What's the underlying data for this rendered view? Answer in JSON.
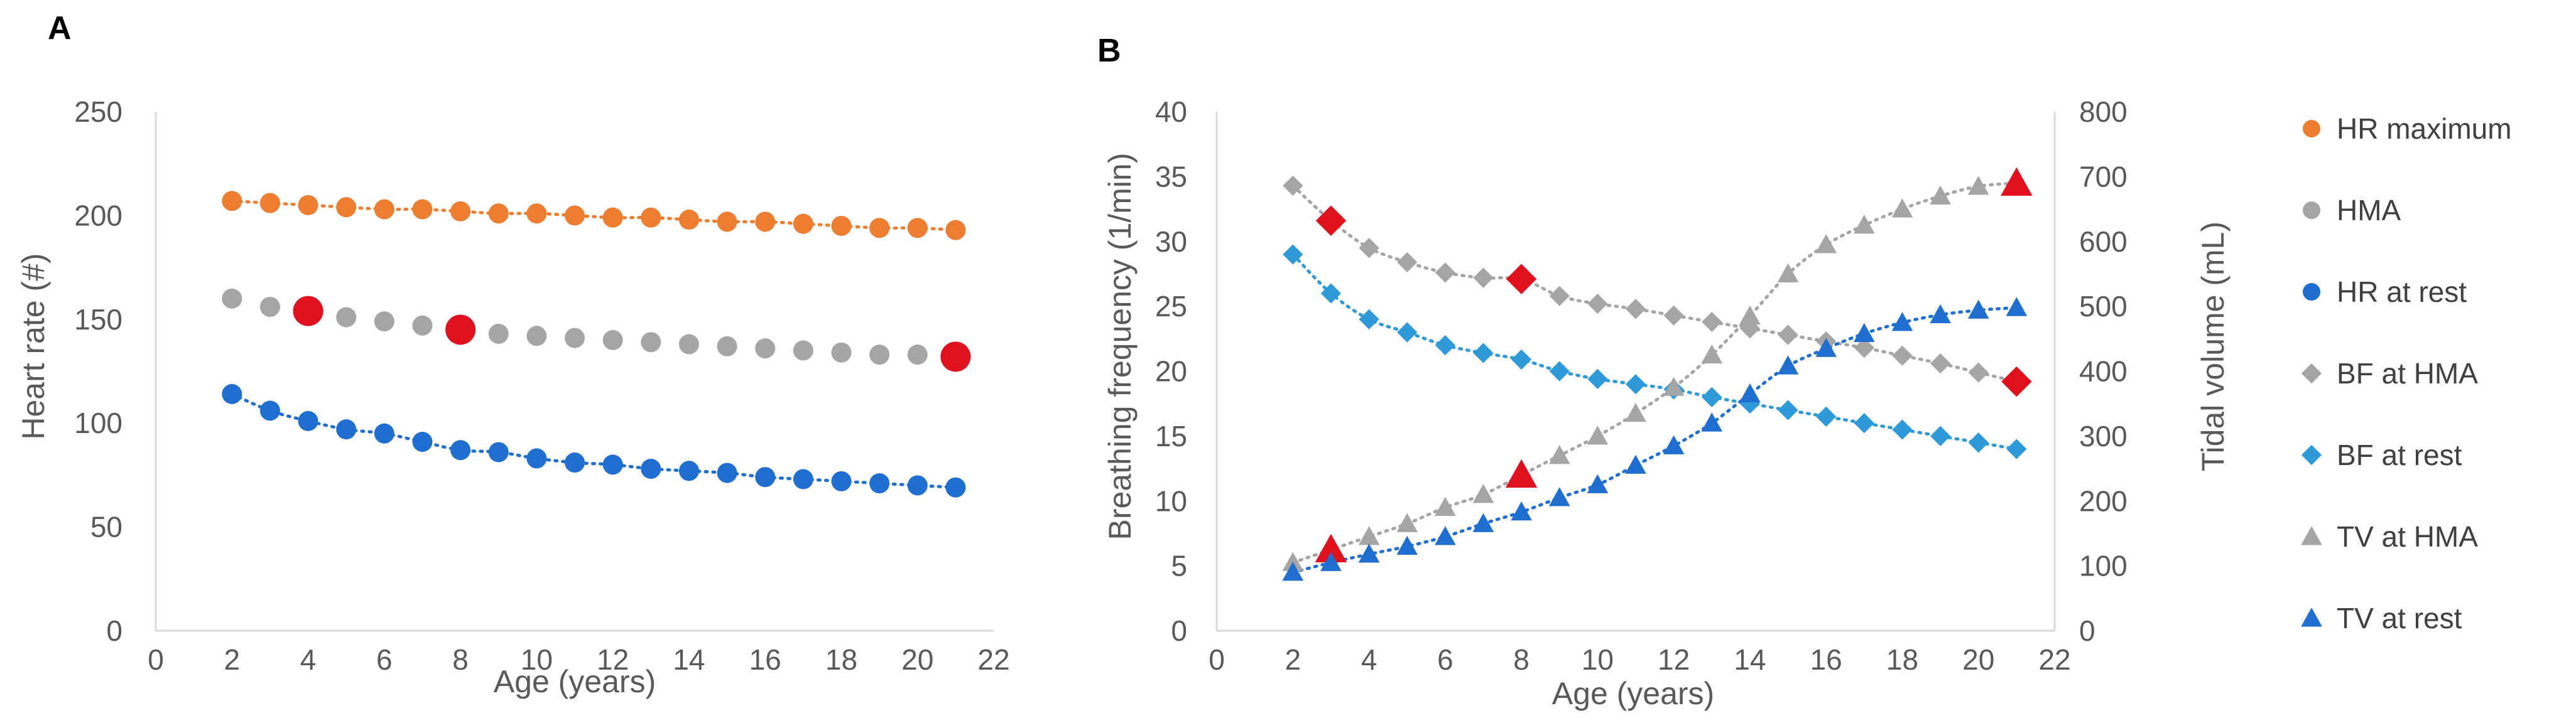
{
  "colors": {
    "orange": "#ED7D31",
    "gray": "#A5A5A5",
    "blue": "#1F6FD1",
    "light_blue": "#2E9BD8",
    "red": "#E0101E",
    "axis": "#D9D9D9",
    "text": "#595959"
  },
  "chart_data": [
    {
      "type": "scatter",
      "panel": "A",
      "xlabel": "Age (years)",
      "ylabel": "Heart rate (#)",
      "xlim": [
        0,
        22
      ],
      "ylim": [
        0,
        250
      ],
      "xticks": [
        "0",
        "2",
        "4",
        "6",
        "8",
        "10",
        "12",
        "14",
        "16",
        "18",
        "20",
        "22"
      ],
      "yticks": [
        "0",
        "50",
        "100",
        "150",
        "200",
        "250"
      ],
      "series": [
        {
          "name": "HR maximum",
          "marker": "circle",
          "color": "orange",
          "trendline": true,
          "x": [
            2,
            3,
            4,
            5,
            6,
            7,
            8,
            9,
            10,
            11,
            12,
            13,
            14,
            15,
            16,
            17,
            18,
            19,
            20,
            21
          ],
          "values": [
            207,
            206,
            205,
            204,
            203,
            203,
            202,
            201,
            201,
            200,
            199,
            199,
            198,
            197,
            197,
            196,
            195,
            194,
            194,
            193
          ]
        },
        {
          "name": "HMA",
          "marker": "circle",
          "color": "gray",
          "trendline": false,
          "x": [
            2,
            3,
            4,
            5,
            6,
            7,
            8,
            9,
            10,
            11,
            12,
            13,
            14,
            15,
            16,
            17,
            18,
            19,
            20,
            21
          ],
          "values": [
            160,
            156,
            154,
            151,
            149,
            147,
            145,
            143,
            142,
            141,
            140,
            139,
            138,
            137,
            136,
            135,
            134,
            133,
            133,
            132
          ],
          "highlight_x": [
            4,
            8,
            21
          ]
        },
        {
          "name": "HR at rest",
          "marker": "circle",
          "color": "blue",
          "trendline": true,
          "x": [
            2,
            3,
            4,
            5,
            6,
            7,
            8,
            9,
            10,
            11,
            12,
            13,
            14,
            15,
            16,
            17,
            18,
            19,
            20,
            21
          ],
          "values": [
            114,
            106,
            101,
            97,
            95,
            91,
            87,
            86,
            83,
            81,
            80,
            78,
            77,
            76,
            74,
            73,
            72,
            71,
            70,
            69
          ]
        }
      ]
    },
    {
      "type": "scatter",
      "panel": "B",
      "xlabel": "Age (years)",
      "ylabel": "Breathing frequency (1/min)",
      "y2label": "Tidal volume (mL)",
      "xlim": [
        0,
        22
      ],
      "ylim": [
        0,
        40
      ],
      "y2lim": [
        0,
        800
      ],
      "xticks": [
        "0",
        "2",
        "4",
        "6",
        "8",
        "10",
        "12",
        "14",
        "16",
        "18",
        "20",
        "22"
      ],
      "yticks": [
        "0",
        "5",
        "10",
        "15",
        "20",
        "25",
        "30",
        "35",
        "40"
      ],
      "y2ticks": [
        "0",
        "100",
        "200",
        "300",
        "400",
        "500",
        "600",
        "700",
        "800"
      ],
      "series": [
        {
          "name": "BF at HMA",
          "marker": "diamond",
          "color": "gray",
          "axis": "left",
          "trendline": true,
          "x": [
            2,
            3,
            4,
            5,
            6,
            7,
            8,
            9,
            10,
            11,
            12,
            13,
            14,
            15,
            16,
            17,
            18,
            19,
            20,
            21
          ],
          "values": [
            34.3,
            31.6,
            29.5,
            28.4,
            27.6,
            27.2,
            27.1,
            25.8,
            25.2,
            24.8,
            24.3,
            23.8,
            23.3,
            22.8,
            22.3,
            21.8,
            21.2,
            20.6,
            19.9,
            19.2
          ],
          "highlight_x": [
            3,
            8,
            21
          ]
        },
        {
          "name": "BF at rest",
          "marker": "diamond",
          "color": "light_blue",
          "axis": "left",
          "trendline": true,
          "x": [
            2,
            3,
            4,
            5,
            6,
            7,
            8,
            9,
            10,
            11,
            12,
            13,
            14,
            15,
            16,
            17,
            18,
            19,
            20,
            21
          ],
          "values": [
            29,
            26,
            24,
            23,
            22,
            21.4,
            20.9,
            20,
            19.4,
            19,
            18.6,
            18,
            17.5,
            17,
            16.5,
            16,
            15.5,
            15,
            14.5,
            14
          ]
        },
        {
          "name": "TV at HMA",
          "marker": "triangle",
          "color": "gray",
          "axis": "right",
          "trendline": true,
          "x": [
            2,
            3,
            4,
            5,
            6,
            7,
            8,
            9,
            10,
            11,
            12,
            13,
            14,
            15,
            16,
            17,
            18,
            19,
            20,
            21
          ],
          "values": [
            105,
            125,
            145,
            165,
            190,
            210,
            240,
            270,
            300,
            335,
            375,
            425,
            485,
            550,
            595,
            625,
            650,
            670,
            685,
            690
          ],
          "highlight_x": [
            3,
            8,
            21
          ]
        },
        {
          "name": "TV at rest",
          "marker": "triangle",
          "color": "blue",
          "axis": "right",
          "trendline": true,
          "x": [
            2,
            3,
            4,
            5,
            6,
            7,
            8,
            9,
            10,
            11,
            12,
            13,
            14,
            15,
            16,
            17,
            18,
            19,
            20,
            21
          ],
          "values": [
            90,
            105,
            118,
            130,
            145,
            165,
            183,
            205,
            225,
            255,
            285,
            320,
            365,
            408,
            435,
            458,
            475,
            487,
            494,
            498
          ]
        }
      ]
    }
  ]
}
